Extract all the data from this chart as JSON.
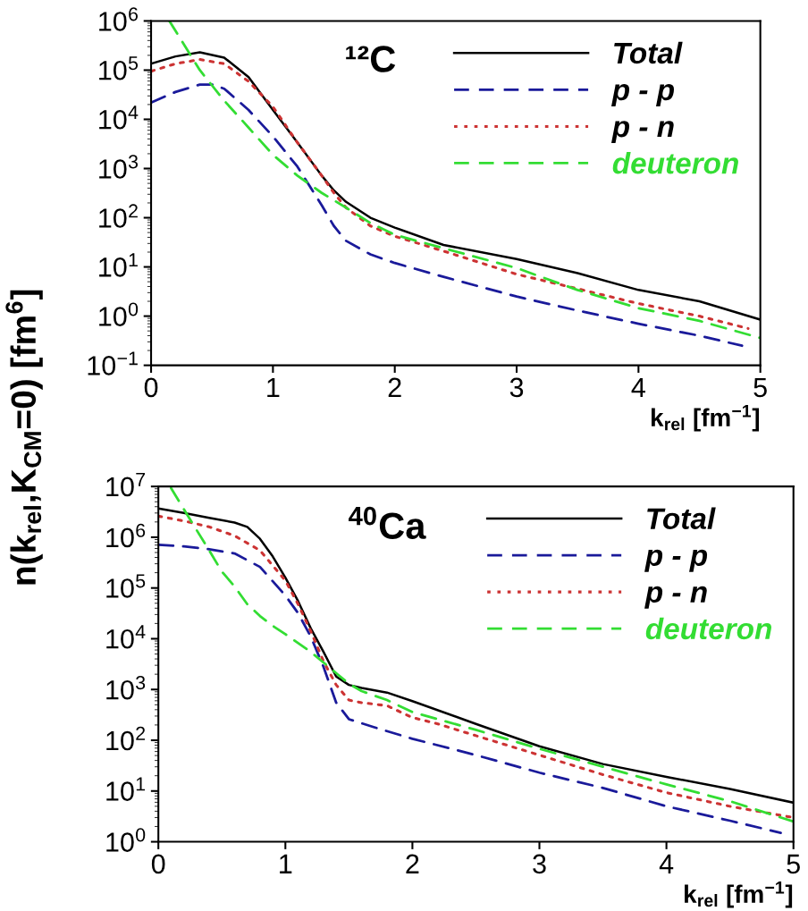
{
  "chart_data": [
    {
      "type": "line",
      "title": "¹²C",
      "ylabel": "n(k$_{rel}$,K$_{CM}$=0) [fm$^{6}$]",
      "xlabel": "k$_{rel}$ [fm$^{−1}$]",
      "log": "y",
      "legend": "top right",
      "grid": false,
      "xlim": [
        0,
        5
      ],
      "xticks": [
        0,
        1,
        2,
        3,
        4,
        5
      ],
      "ylim": [
        0.1,
        1000000
      ],
      "yticks": [
        {
          "value": 0.1,
          "label": "10$^{−1}$"
        },
        {
          "value": 1,
          "label": "10$^{0}$"
        },
        {
          "value": 10,
          "label": "10$^{1}$"
        },
        {
          "value": 100,
          "label": "10$^{2}$"
        },
        {
          "value": 1000,
          "label": "10$^{3}$"
        },
        {
          "value": 10000,
          "label": "10$^{4}$"
        },
        {
          "value": 100000,
          "label": "10$^{5}$"
        },
        {
          "value": 1000000,
          "label": "10$^{6}$"
        }
      ],
      "series": [
        {
          "name": "Total",
          "color": "#000000",
          "line_style": "solid",
          "x": [
            0,
            0.2,
            0.4,
            0.6,
            0.8,
            1.0,
            1.2,
            1.4,
            1.5,
            1.6,
            1.8,
            2.0,
            2.4,
            3.0,
            3.5,
            4.0,
            4.5,
            5.0
          ],
          "values": [
            135000,
            190000,
            230000,
            180000,
            72000,
            15500,
            3400,
            720,
            360,
            210,
            100,
            63,
            28,
            14.5,
            7.5,
            3.4,
            2.0,
            0.85
          ]
        },
        {
          "name": "p - p",
          "color": "#1a1a9a",
          "line_style": "dashed",
          "x": [
            0,
            0.2,
            0.4,
            0.5,
            0.6,
            0.8,
            1.0,
            1.2,
            1.4,
            1.5,
            1.6,
            1.8,
            2.0,
            2.4,
            3.0,
            3.5,
            4.0,
            4.5,
            4.85
          ],
          "values": [
            22000,
            36000,
            51000,
            51000,
            42000,
            15500,
            4500,
            1100,
            180,
            68,
            34,
            18,
            12,
            6.3,
            2.5,
            1.3,
            0.7,
            0.4,
            0.25
          ]
        },
        {
          "name": "p - n",
          "color": "#cc3333",
          "line_style": "dotted",
          "x": [
            0,
            0.2,
            0.4,
            0.6,
            0.8,
            1.0,
            1.2,
            1.4,
            1.5,
            1.6,
            1.8,
            2.0,
            2.4,
            3.0,
            3.5,
            4.0,
            4.5,
            4.9
          ],
          "values": [
            95000,
            135000,
            165000,
            135000,
            59000,
            18000,
            3400,
            720,
            320,
            160,
            68,
            42,
            21,
            7.1,
            3.6,
            1.8,
            1.0,
            0.56
          ]
        },
        {
          "name": "deuteron",
          "color": "#33dd33",
          "line_style": "dashed",
          "x": [
            0.15,
            0.4,
            0.6,
            0.8,
            1.0,
            1.2,
            1.4,
            1.6,
            1.8,
            2.0,
            2.4,
            3.0,
            3.5,
            4.0,
            4.5,
            5.0
          ],
          "values": [
            1000000,
            100000,
            24000,
            6800,
            1900,
            720,
            320,
            160,
            78,
            45,
            24,
            9.5,
            3.4,
            1.45,
            0.8,
            0.36
          ]
        }
      ]
    },
    {
      "type": "line",
      "title": "$^{40}$Ca",
      "xlabel": "k$_{rel}$ [fm$^{−1}$]",
      "log": "y",
      "legend": "top right",
      "grid": false,
      "xlim": [
        0,
        5
      ],
      "xticks": [
        0,
        1,
        2,
        3,
        4,
        5
      ],
      "ylim": [
        1,
        10000000
      ],
      "yticks": [
        {
          "value": 1,
          "label": "10$^{0}$"
        },
        {
          "value": 10,
          "label": "10$^{1}$"
        },
        {
          "value": 100,
          "label": "10$^{2}$"
        },
        {
          "value": 1000,
          "label": "10$^{3}$"
        },
        {
          "value": 10000,
          "label": "10$^{4}$"
        },
        {
          "value": 100000,
          "label": "10$^{5}$"
        },
        {
          "value": 1000000,
          "label": "10$^{6}$"
        },
        {
          "value": 10000000,
          "label": "10$^{7}$"
        }
      ],
      "series": [
        {
          "name": "Total",
          "color": "#000000",
          "line_style": "solid",
          "x": [
            0,
            0.2,
            0.4,
            0.6,
            0.7,
            0.8,
            0.9,
            1.0,
            1.1,
            1.2,
            1.3,
            1.4,
            1.5,
            1.6,
            1.8,
            2.0,
            2.5,
            3.0,
            3.5,
            4.0,
            4.5,
            5.0
          ],
          "values": [
            3700000,
            3000000,
            2400000,
            1950000,
            1600000,
            930000,
            420000,
            160000,
            55000,
            16000,
            5500,
            1800,
            1230,
            1070,
            870,
            590,
            210,
            76,
            34,
            19,
            11,
            5.9
          ]
        },
        {
          "name": "p - p",
          "color": "#1a1a9a",
          "line_style": "dashed",
          "x": [
            0,
            0.2,
            0.4,
            0.6,
            0.8,
            1.0,
            1.1,
            1.2,
            1.3,
            1.4,
            1.5,
            1.7,
            2.0,
            2.5,
            3.0,
            3.5,
            4.0,
            4.5,
            4.9
          ],
          "values": [
            710000,
            660000,
            580000,
            480000,
            260000,
            71000,
            32000,
            11000,
            2800,
            550,
            260,
            180,
            107,
            51,
            23,
            11.5,
            5.0,
            2.6,
            1.5
          ]
        },
        {
          "name": "p - n",
          "color": "#cc3333",
          "line_style": "dotted",
          "x": [
            0,
            0.2,
            0.4,
            0.6,
            0.8,
            1.0,
            1.1,
            1.2,
            1.3,
            1.4,
            1.5,
            1.6,
            1.8,
            2.0,
            2.2,
            2.5,
            3.0,
            3.5,
            4.0,
            4.5,
            5.0
          ],
          "values": [
            2600000,
            2100000,
            1600000,
            1070000,
            550000,
            140000,
            48000,
            14000,
            3600,
            1230,
            620,
            550,
            480,
            280,
            210,
            123,
            51,
            21,
            9.3,
            5.0,
            3.0
          ]
        },
        {
          "name": "deuteron",
          "color": "#33dd33",
          "line_style": "dashed",
          "x": [
            0.1,
            0.2,
            0.3,
            0.4,
            0.5,
            0.6,
            0.7,
            0.8,
            0.9,
            1.0,
            1.2,
            1.4,
            1.5,
            1.6,
            1.8,
            2.0,
            2.2,
            2.5,
            3.0,
            3.5,
            4.0,
            4.5,
            5.0
          ],
          "values": [
            9300000,
            3600000,
            1400000,
            550000,
            210000,
            107000,
            48000,
            28000,
            18000,
            12300,
            5500,
            2100,
            1300,
            930,
            620,
            360,
            260,
            160,
            68,
            30,
            13.5,
            6.3,
            2.5
          ]
        }
      ]
    }
  ]
}
